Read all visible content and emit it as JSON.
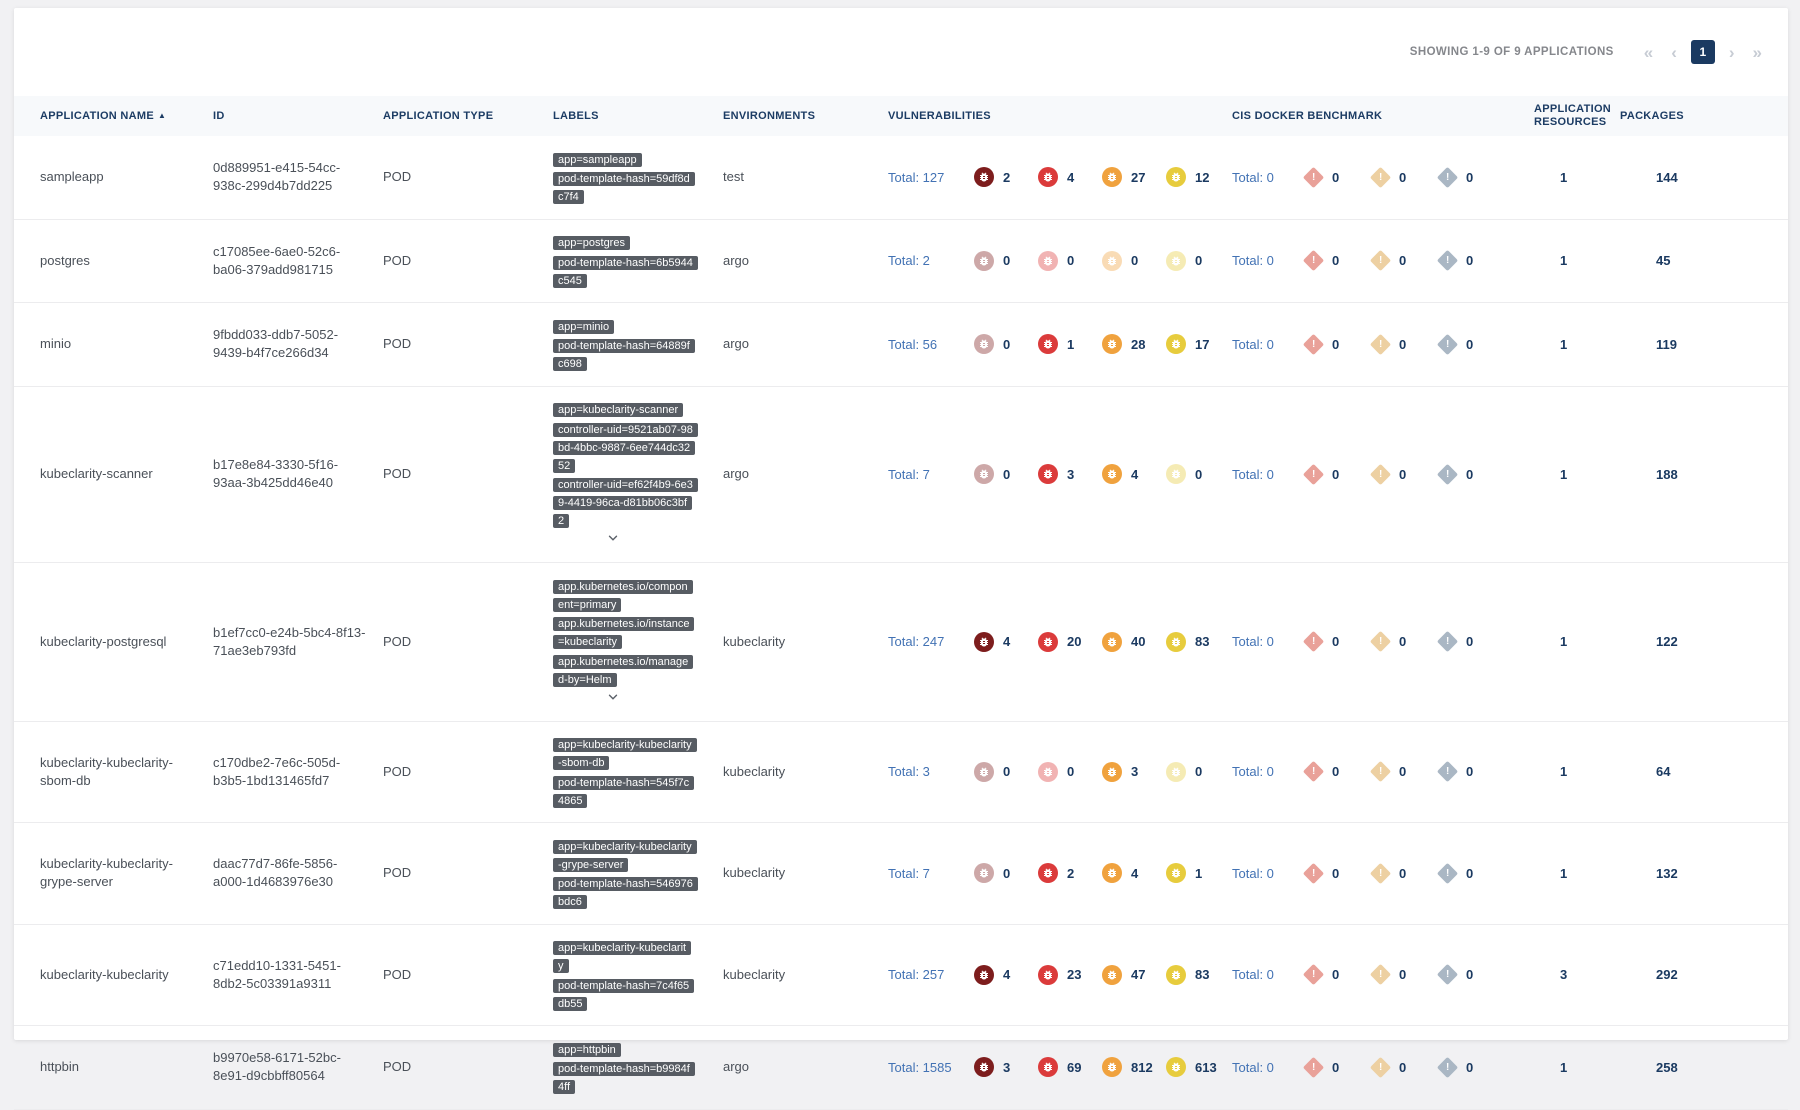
{
  "pagination": {
    "summary": "SHOWING 1-9 OF 9 APPLICATIONS",
    "first_icon": "«",
    "prev_icon": "‹",
    "next_icon": "›",
    "last_icon": "»",
    "current_page": "1"
  },
  "table": {
    "columns": [
      "APPLICATION NAME",
      "ID",
      "APPLICATION TYPE",
      "LABELS",
      "ENVIRONMENTS",
      "VULNERABILITIES",
      "CIS DOCKER BENCHMARK",
      "APPLICATION RESOURCES",
      "PACKAGES"
    ],
    "sorted_column": "APPLICATION NAME",
    "sort_direction": "asc",
    "sort_arrow_icon": "▲",
    "total_label": "Total:"
  },
  "colors": {
    "severity": {
      "critical": "#7d1d1d",
      "high": "#db3b3b",
      "medium": "#f0a23e",
      "low": "#e7cc3d"
    },
    "cis": {
      "fatal": "#e9a199",
      "warn": "#edd0a2",
      "info": "#aab7c4"
    },
    "accent_navy": "#1b3a61",
    "link_blue": "#4272b4",
    "chip_bg": "#575c63"
  },
  "rows": [
    {
      "name": "sampleapp",
      "id": "0d889951-e415-54cc-938c-299d4b7dd225",
      "type": "POD",
      "labels": [
        "app=sampleapp",
        "pod-template-hash=59df8dc7f4"
      ],
      "expandable": false,
      "environments": "test",
      "vulnerabilities": {
        "total": 127,
        "critical": 2,
        "high": 4,
        "medium": 27,
        "low": 12
      },
      "cis": {
        "total": 0,
        "fatal": 0,
        "warn": 0,
        "info": 0
      },
      "resources": 1,
      "packages": 144
    },
    {
      "name": "postgres",
      "id": "c17085ee-6ae0-52c6-ba06-379add981715",
      "type": "POD",
      "labels": [
        "app=postgres",
        "pod-template-hash=6b5944c545"
      ],
      "expandable": false,
      "environments": "argo",
      "vulnerabilities": {
        "total": 2,
        "critical": 0,
        "high": 0,
        "medium": 0,
        "low": 0
      },
      "cis": {
        "total": 0,
        "fatal": 0,
        "warn": 0,
        "info": 0
      },
      "resources": 1,
      "packages": 45
    },
    {
      "name": "minio",
      "id": "9fbdd033-ddb7-5052-9439-b4f7ce266d34",
      "type": "POD",
      "labels": [
        "app=minio",
        "pod-template-hash=64889fc698"
      ],
      "expandable": false,
      "environments": "argo",
      "vulnerabilities": {
        "total": 56,
        "critical": 0,
        "high": 1,
        "medium": 28,
        "low": 17
      },
      "cis": {
        "total": 0,
        "fatal": 0,
        "warn": 0,
        "info": 0
      },
      "resources": 1,
      "packages": 119
    },
    {
      "name": "kubeclarity-scanner",
      "id": "b17e8e84-3330-5f16-93aa-3b425dd46e40",
      "type": "POD",
      "labels": [
        "app=kubeclarity-scanner",
        "controller-uid=9521ab07-98bd-4bbc-9887-6ee744dc3252",
        "controller-uid=ef62f4b9-6e39-4419-96ca-d81bb06c3bf2"
      ],
      "expandable": true,
      "environments": "argo",
      "vulnerabilities": {
        "total": 7,
        "critical": 0,
        "high": 3,
        "medium": 4,
        "low": 0
      },
      "cis": {
        "total": 0,
        "fatal": 0,
        "warn": 0,
        "info": 0
      },
      "resources": 1,
      "packages": 188
    },
    {
      "name": "kubeclarity-postgresql",
      "id": "b1ef7cc0-e24b-5bc4-8f13-71ae3eb793fd",
      "type": "POD",
      "labels": [
        "app.kubernetes.io/component=primary",
        "app.kubernetes.io/instance=kubeclarity",
        "app.kubernetes.io/managed-by=Helm"
      ],
      "expandable": true,
      "environments": "kubeclarity",
      "vulnerabilities": {
        "total": 247,
        "critical": 4,
        "high": 20,
        "medium": 40,
        "low": 83
      },
      "cis": {
        "total": 0,
        "fatal": 0,
        "warn": 0,
        "info": 0
      },
      "resources": 1,
      "packages": 122
    },
    {
      "name": "kubeclarity-kubeclarity-sbom-db",
      "id": "c170dbe2-7e6c-505d-b3b5-1bd131465fd7",
      "type": "POD",
      "labels": [
        "app=kubeclarity-kubeclarity-sbom-db",
        "pod-template-hash=545f7c4865"
      ],
      "expandable": false,
      "environments": "kubeclarity",
      "vulnerabilities": {
        "total": 3,
        "critical": 0,
        "high": 0,
        "medium": 3,
        "low": 0
      },
      "cis": {
        "total": 0,
        "fatal": 0,
        "warn": 0,
        "info": 0
      },
      "resources": 1,
      "packages": 64
    },
    {
      "name": "kubeclarity-kubeclarity-grype-server",
      "id": "daac77d7-86fe-5856-a000-1d4683976e30",
      "type": "POD",
      "labels": [
        "app=kubeclarity-kubeclarity-grype-server",
        "pod-template-hash=546976bdc6"
      ],
      "expandable": false,
      "environments": "kubeclarity",
      "vulnerabilities": {
        "total": 7,
        "critical": 0,
        "high": 2,
        "medium": 4,
        "low": 1
      },
      "cis": {
        "total": 0,
        "fatal": 0,
        "warn": 0,
        "info": 0
      },
      "resources": 1,
      "packages": 132
    },
    {
      "name": "kubeclarity-kubeclarity",
      "id": "c71edd10-1331-5451-8db2-5c03391a9311",
      "type": "POD",
      "labels": [
        "app=kubeclarity-kubeclarity",
        "pod-template-hash=7c4f65db55"
      ],
      "expandable": false,
      "environments": "kubeclarity",
      "vulnerabilities": {
        "total": 257,
        "critical": 4,
        "high": 23,
        "medium": 47,
        "low": 83
      },
      "cis": {
        "total": 0,
        "fatal": 0,
        "warn": 0,
        "info": 0
      },
      "resources": 3,
      "packages": 292
    },
    {
      "name": "httpbin",
      "id": "b9970e58-6171-52bc-8e91-d9cbbff80564",
      "type": "POD",
      "labels": [
        "app=httpbin",
        "pod-template-hash=b9984f4ff"
      ],
      "expandable": false,
      "environments": "argo",
      "vulnerabilities": {
        "total": 1585,
        "critical": 3,
        "high": 69,
        "medium": 812,
        "low": 613
      },
      "cis": {
        "total": 0,
        "fatal": 0,
        "warn": 0,
        "info": 0
      },
      "resources": 1,
      "packages": 258
    }
  ]
}
